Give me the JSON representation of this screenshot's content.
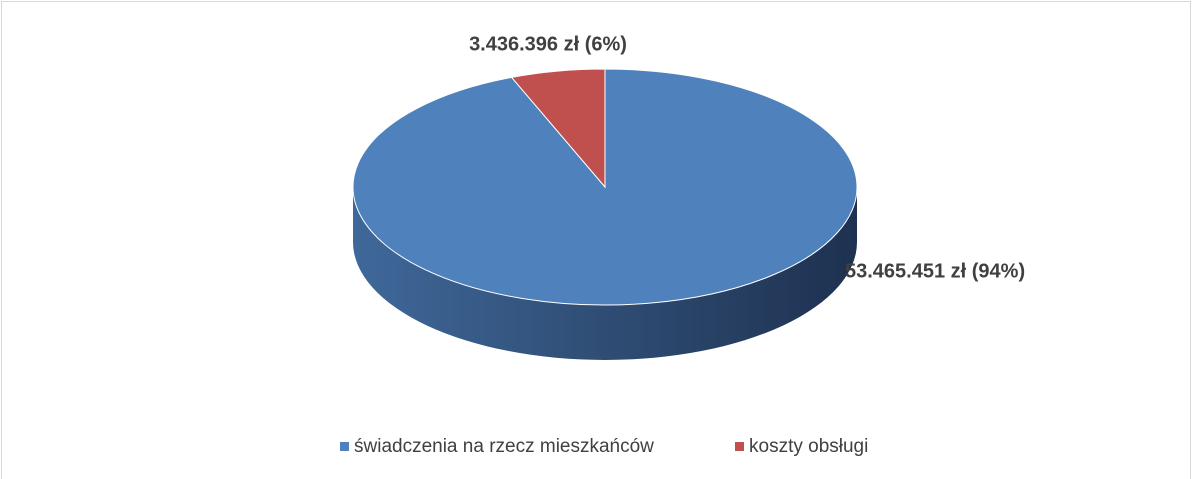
{
  "chart_data": {
    "type": "pie",
    "categories": [
      "świadczenia na rzecz mieszkańców",
      "koszty obsługi"
    ],
    "values": [
      53465451,
      3436396
    ],
    "value_labels": [
      "53.465.451 zł (94%)",
      "3.436.396 zł (6%)"
    ],
    "colors": [
      "#4f81bd",
      "#c0504d"
    ],
    "legend": "bottom"
  }
}
